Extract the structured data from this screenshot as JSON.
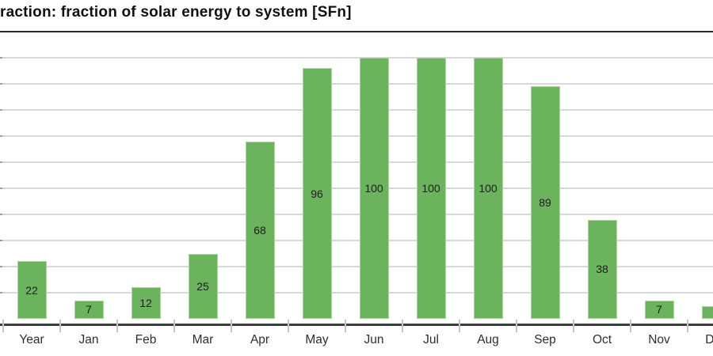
{
  "title": "raction: fraction of solar energy to system [SFn]",
  "colors": {
    "background": "#ffffff",
    "bar_fill": "#6bb45d",
    "bar_border": "#aed3a0",
    "gridline": "#d8d8d8",
    "y_stub": "#9f9f9f",
    "axis_line": "#3c3c3c",
    "tick": "#c6c6c6",
    "title_text": "#111111",
    "title_rule": "#262626",
    "bar_value_text": "#1e1e1e",
    "axis_label_text": "#2e2e2e"
  },
  "chart_data": {
    "type": "bar",
    "title": "raction: fraction of solar energy to system [SFn]",
    "categories": [
      "Year",
      "Jan",
      "Feb",
      "Mar",
      "Apr",
      "May",
      "Jun",
      "Jul",
      "Aug",
      "Sep",
      "Oct",
      "Nov",
      "Dec"
    ],
    "values": [
      22,
      7,
      12,
      25,
      68,
      96,
      100,
      100,
      100,
      89,
      38,
      7,
      5
    ],
    "bar_labels": [
      "22",
      "7",
      "12",
      "25",
      "68",
      "96",
      "100",
      "100",
      "100",
      "89",
      "38",
      "7",
      ""
    ],
    "xlabel": "",
    "ylabel": "",
    "ylim": [
      0,
      100
    ],
    "gridline_interval": 10,
    "grid": true,
    "legend": false,
    "crop_note": "chart cropped at left and right edges; title text clipped at left; Dec bar only partially visible with no visible value label; y-axis tick labels cropped off at left edge"
  }
}
